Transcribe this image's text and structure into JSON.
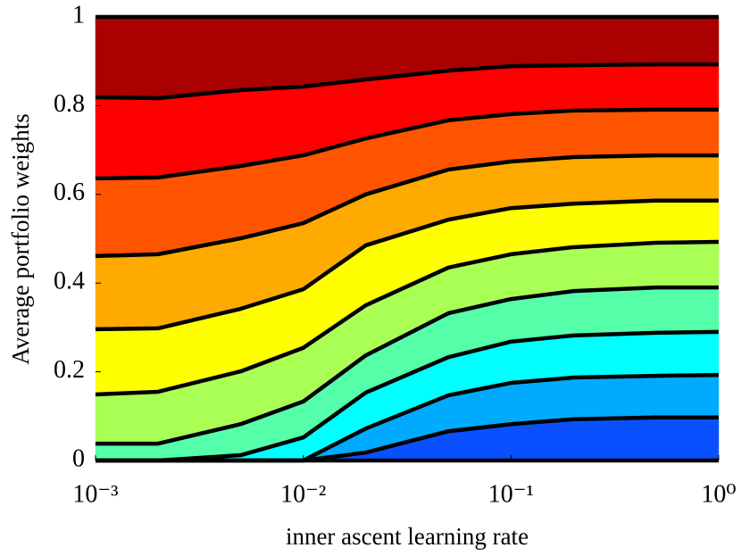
{
  "chart_data": {
    "type": "stacked_area",
    "xlabel": "inner ascent learning rate",
    "ylabel": "Average portfolio weights",
    "x": [
      0.001,
      0.002,
      0.005,
      0.01,
      0.02,
      0.05,
      0.1,
      0.2,
      0.5,
      1
    ],
    "xscale": "log",
    "xlim": [
      0.001,
      1
    ],
    "xticks": [
      {
        "value": 0.001,
        "label": "10⁻³"
      },
      {
        "value": 0.01,
        "label": "10⁻²"
      },
      {
        "value": 0.1,
        "label": "10⁻¹"
      },
      {
        "value": 1,
        "label": "10⁰"
      }
    ],
    "ylim": [
      0,
      1
    ],
    "yticks": [
      0,
      0.2,
      0.4,
      0.6,
      0.8,
      1
    ],
    "edge_color": "#000000",
    "series": [
      {
        "color": "#0a50ff",
        "values": [
          0,
          0,
          0,
          0,
          0.018,
          0.066,
          0.082,
          0.093,
          0.097,
          0.097
        ]
      },
      {
        "color": "#00aaff",
        "values": [
          0,
          0,
          0,
          0,
          0.054,
          0.081,
          0.093,
          0.094,
          0.094,
          0.096
        ]
      },
      {
        "color": "#00ffff",
        "values": [
          0,
          0,
          0.012,
          0.052,
          0.081,
          0.086,
          0.093,
          0.095,
          0.097,
          0.097
        ]
      },
      {
        "color": "#55ffaa",
        "values": [
          0.038,
          0.038,
          0.07,
          0.081,
          0.084,
          0.099,
          0.096,
          0.1,
          0.102,
          0.1
        ]
      },
      {
        "color": "#aaff55",
        "values": [
          0.111,
          0.117,
          0.119,
          0.121,
          0.113,
          0.103,
          0.101,
          0.099,
          0.101,
          0.103
        ]
      },
      {
        "color": "#ffff00",
        "values": [
          0.147,
          0.143,
          0.141,
          0.132,
          0.135,
          0.108,
          0.104,
          0.098,
          0.095,
          0.093
        ]
      },
      {
        "color": "#ffaa00",
        "values": [
          0.165,
          0.167,
          0.159,
          0.149,
          0.115,
          0.113,
          0.105,
          0.105,
          0.102,
          0.102
        ]
      },
      {
        "color": "#ff5500",
        "values": [
          0.175,
          0.173,
          0.163,
          0.153,
          0.126,
          0.111,
          0.107,
          0.105,
          0.103,
          0.103
        ]
      },
      {
        "color": "#ff0000",
        "values": [
          0.183,
          0.179,
          0.171,
          0.155,
          0.133,
          0.112,
          0.108,
          0.102,
          0.102,
          0.102
        ]
      },
      {
        "color": "#aa0000",
        "values": [
          0.181,
          0.183,
          0.165,
          0.157,
          0.141,
          0.121,
          0.111,
          0.109,
          0.107,
          0.107
        ]
      }
    ]
  }
}
